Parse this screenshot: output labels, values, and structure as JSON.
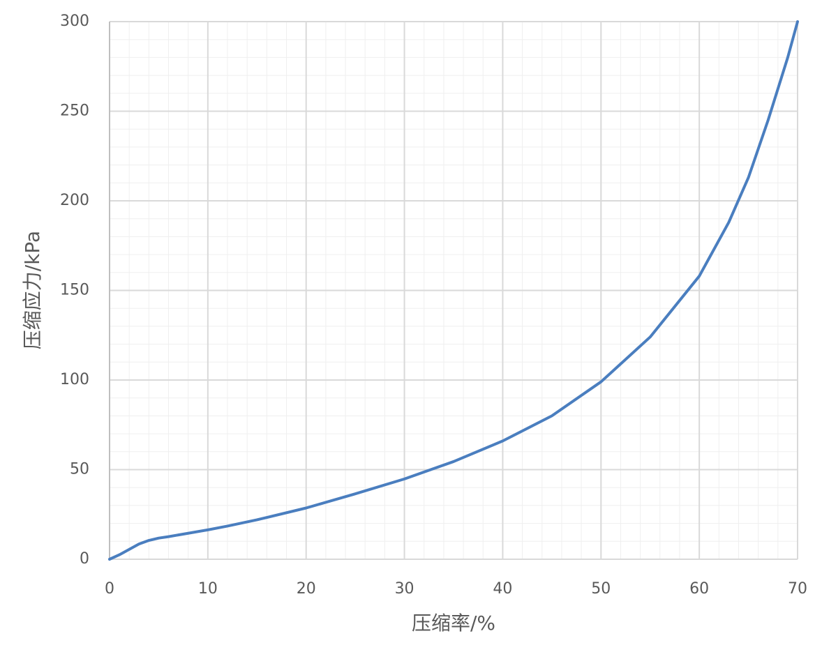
{
  "chart_data": {
    "type": "line",
    "x_label": "压缩率/%",
    "y_label": "压缩应力/kPa",
    "x": [
      0,
      1,
      2,
      3,
      4,
      5,
      6,
      8,
      10,
      12,
      15,
      20,
      25,
      30,
      35,
      40,
      45,
      50,
      55,
      60,
      63,
      65,
      67,
      69,
      70
    ],
    "series": [
      {
        "name": "压缩应力",
        "color": "#4a7ebf",
        "values": [
          0,
          2.5,
          5.5,
          8.5,
          10.5,
          11.8,
          12.6,
          14.5,
          16.4,
          18.5,
          22,
          28.6,
          36.5,
          44.8,
          54.5,
          66,
          80,
          99,
          124,
          158,
          188,
          213,
          245,
          280,
          300
        ]
      }
    ],
    "xlim": [
      0,
      70
    ],
    "xticks": [
      0,
      10,
      20,
      30,
      40,
      50,
      60,
      70
    ],
    "ylim": [
      0,
      300
    ],
    "yticks": [
      0,
      50,
      100,
      150,
      200,
      250,
      300
    ],
    "grid": true,
    "minor_grid": true
  }
}
